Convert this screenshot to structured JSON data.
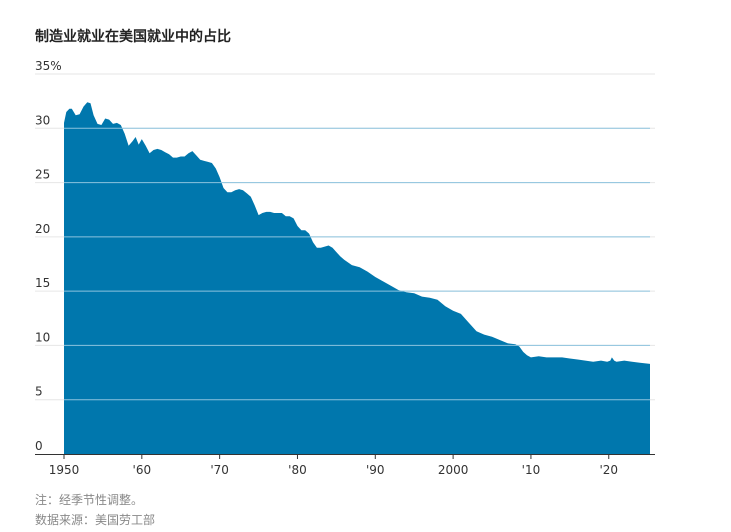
{
  "title": "制造业就业在美国就业中的占比",
  "note": "注：经季节性调整。",
  "source": "数据来源：美国劳工部",
  "colors": {
    "area": "#0077ad",
    "grid": "#e6e6e6",
    "inner_grid": "#8cc3de",
    "text": "#333333"
  },
  "chart_data": {
    "type": "area",
    "title": "制造业就业在美国就业中的占比",
    "xlabel": "",
    "ylabel": "",
    "xlim": [
      1950,
      2025.3
    ],
    "ylim": [
      0,
      35
    ],
    "grid": true,
    "legend": "none",
    "y_ticks": [
      {
        "value": 35,
        "label": "35%"
      },
      {
        "value": 30,
        "label": "30"
      },
      {
        "value": 25,
        "label": "25"
      },
      {
        "value": 20,
        "label": "20"
      },
      {
        "value": 15,
        "label": "15"
      },
      {
        "value": 10,
        "label": "10"
      },
      {
        "value": 5,
        "label": "5"
      },
      {
        "value": 0,
        "label": "0"
      }
    ],
    "x_ticks": [
      {
        "value": 1950,
        "label": "1950"
      },
      {
        "value": 1960,
        "label": "'60"
      },
      {
        "value": 1970,
        "label": "'70"
      },
      {
        "value": 1980,
        "label": "'80"
      },
      {
        "value": 1990,
        "label": "'90"
      },
      {
        "value": 2000,
        "label": "2000"
      },
      {
        "value": 2010,
        "label": "'10"
      },
      {
        "value": 2020,
        "label": "'20"
      }
    ],
    "x": [
      1950.0,
      1950.3,
      1950.7,
      1951.0,
      1951.5,
      1952.0,
      1952.5,
      1953.0,
      1953.4,
      1953.8,
      1954.3,
      1954.8,
      1955.3,
      1955.8,
      1956.3,
      1956.8,
      1957.3,
      1957.8,
      1958.3,
      1958.8,
      1959.2,
      1959.6,
      1960.0,
      1960.5,
      1961.0,
      1961.5,
      1962.0,
      1962.5,
      1963.0,
      1963.5,
      1964.0,
      1964.5,
      1965.0,
      1965.5,
      1966.0,
      1966.5,
      1967.0,
      1967.5,
      1968.0,
      1968.5,
      1969.0,
      1969.5,
      1970.0,
      1970.5,
      1971.0,
      1971.5,
      1972.0,
      1972.5,
      1973.0,
      1973.5,
      1974.0,
      1974.5,
      1975.0,
      1975.5,
      1976.0,
      1976.5,
      1977.0,
      1977.5,
      1978.0,
      1978.5,
      1979.0,
      1979.5,
      1980.0,
      1980.5,
      1981.0,
      1981.5,
      1982.0,
      1982.5,
      1983.0,
      1983.5,
      1984.0,
      1984.5,
      1985.0,
      1985.5,
      1986.0,
      1987.0,
      1988.0,
      1989.0,
      1990.0,
      1991.0,
      1992.0,
      1993.0,
      1994.0,
      1995.0,
      1996.0,
      1997.0,
      1998.0,
      1999.0,
      2000.0,
      2001.0,
      2002.0,
      2003.0,
      2004.0,
      2005.0,
      2006.0,
      2007.0,
      2008.0,
      2008.5,
      2009.0,
      2009.5,
      2010.0,
      2011.0,
      2012.0,
      2013.0,
      2014.0,
      2015.0,
      2016.0,
      2017.0,
      2018.0,
      2019.0,
      2019.8,
      2020.2,
      2020.4,
      2020.7,
      2021.0,
      2022.0,
      2023.0,
      2024.0,
      2025.3
    ],
    "values": [
      30.5,
      31.5,
      31.8,
      31.8,
      31.2,
      31.3,
      32.0,
      32.4,
      32.3,
      31.2,
      30.4,
      30.3,
      30.9,
      30.8,
      30.4,
      30.5,
      30.3,
      29.5,
      28.4,
      28.8,
      29.2,
      28.5,
      29.0,
      28.4,
      27.7,
      28.0,
      28.1,
      28.0,
      27.8,
      27.6,
      27.3,
      27.3,
      27.4,
      27.4,
      27.7,
      27.9,
      27.5,
      27.1,
      27.0,
      26.9,
      26.8,
      26.3,
      25.5,
      24.5,
      24.1,
      24.1,
      24.3,
      24.4,
      24.3,
      24.0,
      23.7,
      22.9,
      22.0,
      22.2,
      22.3,
      22.3,
      22.2,
      22.2,
      22.2,
      21.9,
      21.9,
      21.7,
      21.0,
      20.6,
      20.6,
      20.3,
      19.5,
      19.0,
      19.0,
      19.1,
      19.2,
      19.0,
      18.6,
      18.2,
      17.9,
      17.4,
      17.2,
      16.8,
      16.3,
      15.9,
      15.5,
      15.1,
      14.9,
      14.8,
      14.5,
      14.4,
      14.2,
      13.6,
      13.2,
      12.9,
      12.1,
      11.3,
      11.0,
      10.8,
      10.5,
      10.2,
      10.1,
      9.9,
      9.4,
      9.1,
      8.9,
      9.0,
      8.9,
      8.9,
      8.9,
      8.8,
      8.7,
      8.6,
      8.5,
      8.6,
      8.5,
      8.6,
      8.9,
      8.6,
      8.5,
      8.6,
      8.5,
      8.4,
      8.3
    ]
  }
}
